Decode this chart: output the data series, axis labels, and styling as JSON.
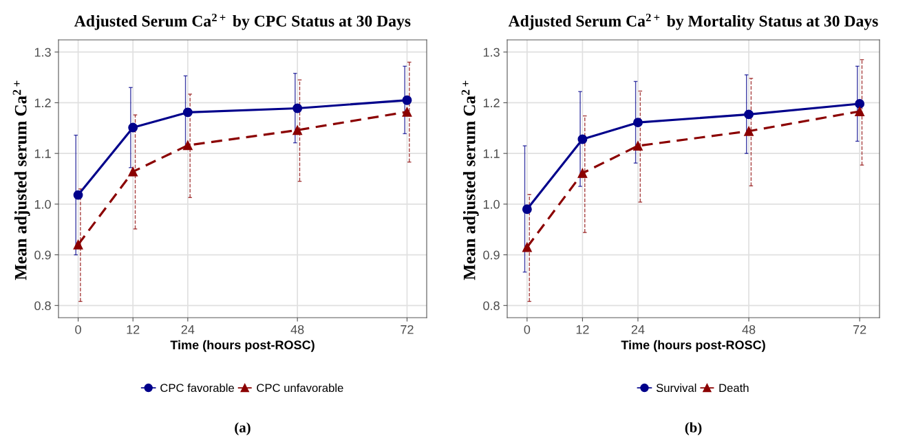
{
  "chart_data": [
    {
      "type": "line",
      "title": "Adjusted Serum Ca$^{2+}$ by CPC Status at 30 Days",
      "xlabel": "Time (hours post-ROSC)",
      "ylabel": "Mean adjusted serum Ca$^{2+}$",
      "x": [
        0,
        12,
        24,
        48,
        72
      ],
      "xlim": [
        -4.3,
        76.3
      ],
      "xticks": [
        0,
        12,
        24,
        48,
        72
      ],
      "ylim": [
        0.776,
        1.324
      ],
      "yticks": [
        0.8,
        0.9,
        {
          "value": 1.0,
          "label": "1.0"
        },
        1.1,
        1.2,
        1.3
      ],
      "grid": true,
      "legend": "bottom",
      "series": [
        {
          "name": "CPC favorable",
          "color": "#00008b",
          "marker": "circle",
          "line_style": "solid",
          "values": [
            1.018,
            1.151,
            1.181,
            1.189,
            1.205
          ],
          "errors": [
            [
              0.9,
              1.136
            ],
            [
              1.072,
              1.23
            ],
            [
              1.109,
              1.253
            ],
            [
              1.121,
              1.258
            ],
            [
              1.139,
              1.272
            ]
          ]
        },
        {
          "name": "CPC unfavorable",
          "color": "#8b0000",
          "marker": "triangle",
          "line_style": "dashed",
          "values": [
            0.92,
            1.064,
            1.116,
            1.146,
            1.182
          ],
          "errors": [
            [
              0.808,
              1.03
            ],
            [
              0.951,
              1.176
            ],
            [
              1.013,
              1.217
            ],
            [
              1.045,
              1.245
            ],
            [
              1.083,
              1.28
            ]
          ]
        }
      ],
      "annotations": [
        "(a)"
      ]
    },
    {
      "type": "line",
      "title": "Adjusted Serum Ca$^{2+}$ by Mortality Status at 30 Days",
      "xlabel": "Time (hours post-ROSC)",
      "ylabel": "Mean adjusted serum Ca$^{2+}$",
      "x": [
        0,
        12,
        24,
        48,
        72
      ],
      "xlim": [
        -4.3,
        76.3
      ],
      "xticks": [
        0,
        12,
        24,
        48,
        72
      ],
      "ylim": [
        0.776,
        1.324
      ],
      "yticks": [
        0.8,
        0.9,
        {
          "value": 1.0,
          "label": "1.0"
        },
        1.1,
        1.2,
        1.3
      ],
      "grid": true,
      "legend": "bottom",
      "series": [
        {
          "name": "Survival",
          "color": "#00008b",
          "marker": "circle",
          "line_style": "solid",
          "values": [
            0.99,
            1.128,
            1.161,
            1.177,
            1.198
          ],
          "errors": [
            [
              0.866,
              1.115
            ],
            [
              1.035,
              1.222
            ],
            [
              1.081,
              1.242
            ],
            [
              1.1,
              1.255
            ],
            [
              1.124,
              1.272
            ]
          ]
        },
        {
          "name": "Death",
          "color": "#8b0000",
          "marker": "triangle",
          "line_style": "dashed",
          "values": [
            0.915,
            1.061,
            1.115,
            1.144,
            1.183
          ],
          "errors": [
            [
              0.808,
              1.019
            ],
            [
              0.944,
              1.174
            ],
            [
              1.004,
              1.223
            ],
            [
              1.036,
              1.248
            ],
            [
              1.077,
              1.285
            ]
          ]
        }
      ],
      "annotations": [
        "(b)"
      ]
    }
  ]
}
